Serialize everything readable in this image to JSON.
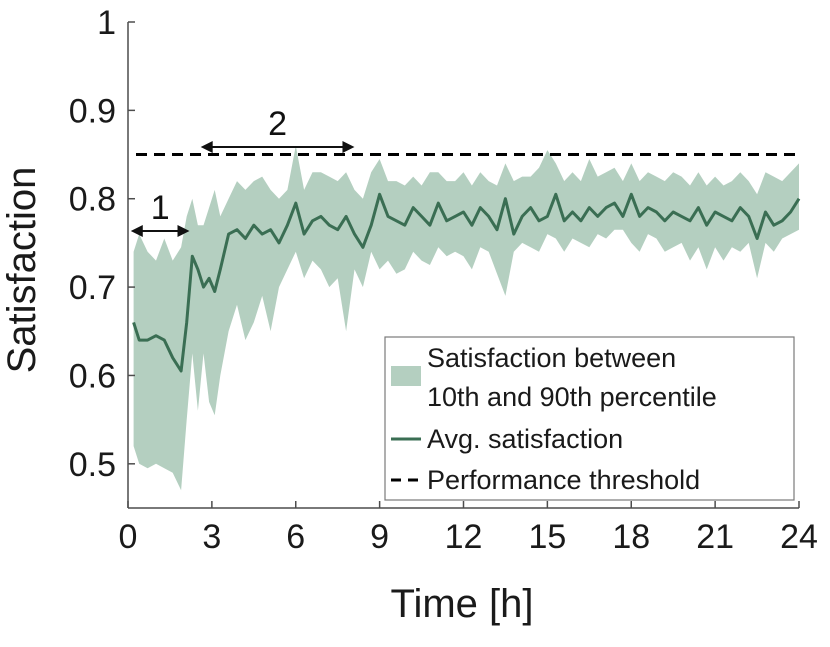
{
  "chart_data": {
    "type": "area",
    "title": "",
    "xlabel": "Time [h]",
    "ylabel": "Satisfaction",
    "xlim": [
      0,
      24
    ],
    "ylim": [
      0.45,
      1.0
    ],
    "xticks": [
      0,
      3,
      6,
      9,
      12,
      15,
      18,
      21,
      24
    ],
    "xtick_labels": [
      "0",
      "3",
      "6",
      "9",
      "12",
      "15",
      "18",
      "21",
      "24"
    ],
    "yticks": [
      0.5,
      0.6,
      0.7,
      0.8,
      0.9,
      1.0
    ],
    "ytick_labels": [
      "0.5",
      "0.6",
      "0.7",
      "0.8",
      "0.9",
      "1"
    ],
    "grid": false,
    "colors": {
      "band": "#b4cfc0",
      "line": "#3a6e53",
      "threshold": "#000000"
    },
    "threshold": {
      "name": "Performance threshold",
      "value": 0.85
    },
    "legend": {
      "location": "bottom-right",
      "band_label_line1": "Satisfaction between",
      "band_label_line2": "10th and 90th percentile",
      "avg_label": "Avg. satisfaction",
      "threshold_label": "Performance threshold"
    },
    "annotations": [
      {
        "label": "1",
        "x_start": 0.1,
        "x_end": 2.2
      },
      {
        "label": "2",
        "x_start": 2.6,
        "x_end": 8.1
      }
    ],
    "series": [
      {
        "name": "Avg. satisfaction",
        "x": [
          0.2,
          0.4,
          0.7,
          1.0,
          1.3,
          1.6,
          1.9,
          2.1,
          2.3,
          2.5,
          2.7,
          2.9,
          3.1,
          3.3,
          3.6,
          3.9,
          4.2,
          4.5,
          4.8,
          5.1,
          5.4,
          5.7,
          6.0,
          6.3,
          6.6,
          6.9,
          7.2,
          7.5,
          7.8,
          8.1,
          8.4,
          8.7,
          9.0,
          9.3,
          9.6,
          9.9,
          10.2,
          10.5,
          10.8,
          11.1,
          11.4,
          11.7,
          12.0,
          12.3,
          12.6,
          12.9,
          13.2,
          13.5,
          13.8,
          14.1,
          14.4,
          14.7,
          15.0,
          15.3,
          15.6,
          15.9,
          16.2,
          16.5,
          16.8,
          17.1,
          17.4,
          17.7,
          18.0,
          18.3,
          18.6,
          18.9,
          19.2,
          19.5,
          19.8,
          20.1,
          20.4,
          20.7,
          21.0,
          21.3,
          21.6,
          21.9,
          22.2,
          22.5,
          22.8,
          23.1,
          23.4,
          23.7,
          24.0
        ],
        "values": [
          0.66,
          0.64,
          0.64,
          0.645,
          0.64,
          0.62,
          0.605,
          0.66,
          0.735,
          0.72,
          0.7,
          0.71,
          0.695,
          0.72,
          0.76,
          0.765,
          0.755,
          0.77,
          0.76,
          0.765,
          0.75,
          0.77,
          0.795,
          0.76,
          0.775,
          0.78,
          0.77,
          0.765,
          0.78,
          0.76,
          0.745,
          0.77,
          0.805,
          0.78,
          0.775,
          0.77,
          0.79,
          0.78,
          0.77,
          0.795,
          0.775,
          0.78,
          0.785,
          0.77,
          0.79,
          0.78,
          0.765,
          0.8,
          0.76,
          0.78,
          0.79,
          0.775,
          0.78,
          0.805,
          0.775,
          0.785,
          0.775,
          0.79,
          0.78,
          0.79,
          0.795,
          0.78,
          0.805,
          0.78,
          0.79,
          0.785,
          0.775,
          0.785,
          0.78,
          0.775,
          0.79,
          0.77,
          0.785,
          0.78,
          0.775,
          0.79,
          0.78,
          0.755,
          0.785,
          0.77,
          0.775,
          0.785,
          0.8
        ]
      },
      {
        "name": "10th percentile",
        "x": [
          0.2,
          0.4,
          0.7,
          1.0,
          1.3,
          1.6,
          1.9,
          2.1,
          2.3,
          2.5,
          2.7,
          2.9,
          3.1,
          3.3,
          3.6,
          3.9,
          4.2,
          4.5,
          4.8,
          5.1,
          5.4,
          5.7,
          6.0,
          6.3,
          6.6,
          6.9,
          7.2,
          7.5,
          7.8,
          8.1,
          8.4,
          8.7,
          9.0,
          9.3,
          9.6,
          9.9,
          10.2,
          10.5,
          10.8,
          11.1,
          11.4,
          11.7,
          12.0,
          12.3,
          12.6,
          12.9,
          13.2,
          13.5,
          13.8,
          14.1,
          14.4,
          14.7,
          15.0,
          15.3,
          15.6,
          15.9,
          16.2,
          16.5,
          16.8,
          17.1,
          17.4,
          17.7,
          18.0,
          18.3,
          18.6,
          18.9,
          19.2,
          19.5,
          19.8,
          20.1,
          20.4,
          20.7,
          21.0,
          21.3,
          21.6,
          21.9,
          22.2,
          22.5,
          22.8,
          23.1,
          23.4,
          23.7,
          24.0
        ],
        "values": [
          0.52,
          0.5,
          0.495,
          0.5,
          0.495,
          0.49,
          0.47,
          0.55,
          0.625,
          0.56,
          0.625,
          0.57,
          0.555,
          0.6,
          0.65,
          0.68,
          0.64,
          0.66,
          0.69,
          0.65,
          0.7,
          0.72,
          0.74,
          0.71,
          0.73,
          0.72,
          0.7,
          0.71,
          0.65,
          0.72,
          0.7,
          0.74,
          0.72,
          0.73,
          0.715,
          0.72,
          0.74,
          0.73,
          0.725,
          0.745,
          0.735,
          0.74,
          0.735,
          0.72,
          0.745,
          0.74,
          0.715,
          0.69,
          0.74,
          0.75,
          0.745,
          0.74,
          0.76,
          0.755,
          0.74,
          0.755,
          0.75,
          0.745,
          0.76,
          0.755,
          0.765,
          0.765,
          0.75,
          0.74,
          0.76,
          0.755,
          0.74,
          0.745,
          0.75,
          0.73,
          0.745,
          0.72,
          0.745,
          0.73,
          0.745,
          0.74,
          0.75,
          0.71,
          0.75,
          0.74,
          0.755,
          0.76,
          0.765
        ]
      },
      {
        "name": "90th percentile",
        "x": [
          0.2,
          0.4,
          0.7,
          1.0,
          1.3,
          1.6,
          1.9,
          2.1,
          2.3,
          2.5,
          2.7,
          2.9,
          3.1,
          3.3,
          3.6,
          3.9,
          4.2,
          4.5,
          4.8,
          5.1,
          5.4,
          5.7,
          6.0,
          6.3,
          6.6,
          6.9,
          7.2,
          7.5,
          7.8,
          8.1,
          8.4,
          8.7,
          9.0,
          9.3,
          9.6,
          9.9,
          10.2,
          10.5,
          10.8,
          11.1,
          11.4,
          11.7,
          12.0,
          12.3,
          12.6,
          12.9,
          13.2,
          13.5,
          13.8,
          14.1,
          14.4,
          14.7,
          15.0,
          15.3,
          15.6,
          15.9,
          16.2,
          16.5,
          16.8,
          17.1,
          17.4,
          17.7,
          18.0,
          18.3,
          18.6,
          18.9,
          19.2,
          19.5,
          19.8,
          20.1,
          20.4,
          20.7,
          21.0,
          21.3,
          21.6,
          21.9,
          22.2,
          22.5,
          22.8,
          23.1,
          23.4,
          23.7,
          24.0
        ],
        "values": [
          0.74,
          0.76,
          0.74,
          0.73,
          0.755,
          0.73,
          0.745,
          0.78,
          0.8,
          0.77,
          0.77,
          0.79,
          0.81,
          0.78,
          0.8,
          0.82,
          0.81,
          0.82,
          0.825,
          0.81,
          0.8,
          0.81,
          0.86,
          0.81,
          0.83,
          0.83,
          0.825,
          0.82,
          0.83,
          0.81,
          0.8,
          0.83,
          0.845,
          0.82,
          0.82,
          0.815,
          0.825,
          0.815,
          0.83,
          0.83,
          0.82,
          0.82,
          0.83,
          0.815,
          0.83,
          0.82,
          0.815,
          0.84,
          0.82,
          0.825,
          0.825,
          0.835,
          0.855,
          0.84,
          0.82,
          0.83,
          0.82,
          0.845,
          0.825,
          0.83,
          0.835,
          0.82,
          0.84,
          0.82,
          0.83,
          0.825,
          0.82,
          0.83,
          0.825,
          0.815,
          0.83,
          0.815,
          0.825,
          0.815,
          0.82,
          0.83,
          0.82,
          0.805,
          0.83,
          0.825,
          0.82,
          0.83,
          0.84
        ]
      }
    ]
  }
}
